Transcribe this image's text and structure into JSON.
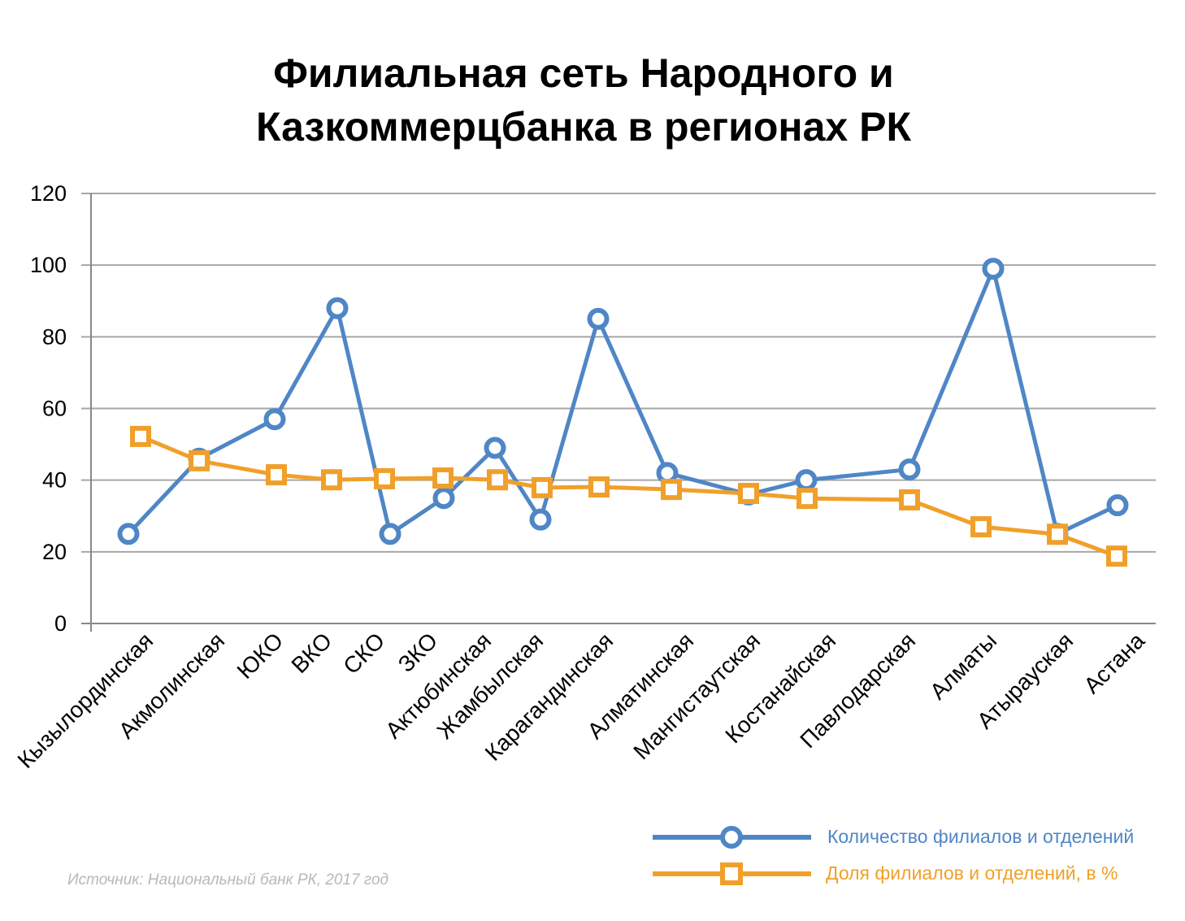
{
  "chart_data": {
    "type": "line",
    "title": [
      "Филиальная сеть Народного и",
      "Казкоммерцбанка в регионах РК"
    ],
    "xlabel": "",
    "ylabel": "",
    "ylim": [
      0,
      120
    ],
    "yticks": [
      0,
      20,
      40,
      60,
      80,
      100,
      120
    ],
    "grid": true,
    "legend_position": "bottom-right",
    "categories": [
      "Кызылординская",
      "Акмолинская",
      "ЮКО",
      "ВКО",
      "СКО",
      "ЗКО",
      "Актюбинская",
      "Жамбылская",
      "Карагандинская",
      "Алматинская",
      "Мангистаутская",
      "Костанайская",
      "Павлодарская",
      "Алматы",
      "Атырауская",
      "Астана"
    ],
    "series": [
      {
        "name": "Количество филиалов и отделений",
        "color": "#4f86c6",
        "marker": "circle",
        "values": [
          25,
          46,
          57,
          88,
          25,
          35,
          49,
          29,
          85,
          42,
          36,
          40,
          43,
          99,
          25,
          33
        ]
      },
      {
        "name": "Доля филиалов и отделений, в %",
        "color": "#f0a02a",
        "marker": "square",
        "values": [
          52.2,
          45.4,
          41.5,
          40.1,
          40.4,
          40.6,
          40.1,
          37.9,
          38.1,
          37.4,
          36.3,
          34.9,
          34.5,
          27.0,
          24.9,
          18.8
        ]
      }
    ],
    "source": "Источник: Национальный банк РК, 2017 год"
  }
}
